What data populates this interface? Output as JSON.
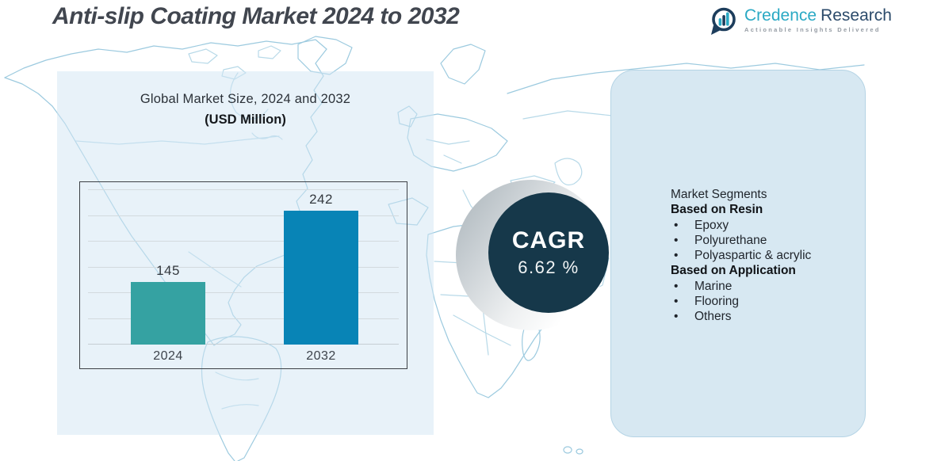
{
  "header": {
    "title": "Anti-slip Coating Market 2024 to 2032"
  },
  "logo": {
    "brand_first": "Credence",
    "brand_second": "Research",
    "tagline": "Actionable Insights Delivered"
  },
  "chart_data": {
    "type": "bar",
    "title": "Global Market Size, 2024 and 2032",
    "subtitle": "(USD Million)",
    "categories": [
      "2024",
      "2032"
    ],
    "values": [
      145,
      242
    ],
    "series_colors": [
      "#35a2a2",
      "#0884b6"
    ],
    "ylim": [
      60,
      270
    ],
    "grid": true,
    "legend": false,
    "xlabel": "",
    "ylabel": ""
  },
  "cagr": {
    "label": "CAGR",
    "value": "6.62 %",
    "circle_color": "#16384a"
  },
  "segments": {
    "heading": "Market Segments",
    "groups": [
      {
        "title": "Based on Resin",
        "items": [
          "Epoxy",
          "Polyurethane",
          "Polyaspartic & acrylic"
        ]
      },
      {
        "title": "Based on Application",
        "items": [
          "Marine",
          "Flooring",
          "Others"
        ]
      }
    ]
  },
  "colors": {
    "bar_2024": "#35a2a2",
    "bar_2032": "#0884b6",
    "cagr_circle": "#16384a",
    "brand_teal": "#2aa9c4",
    "brand_navy": "#2c4b6b",
    "map_stroke": "#9ccadf",
    "panel_fill": "#d7e8f2"
  }
}
